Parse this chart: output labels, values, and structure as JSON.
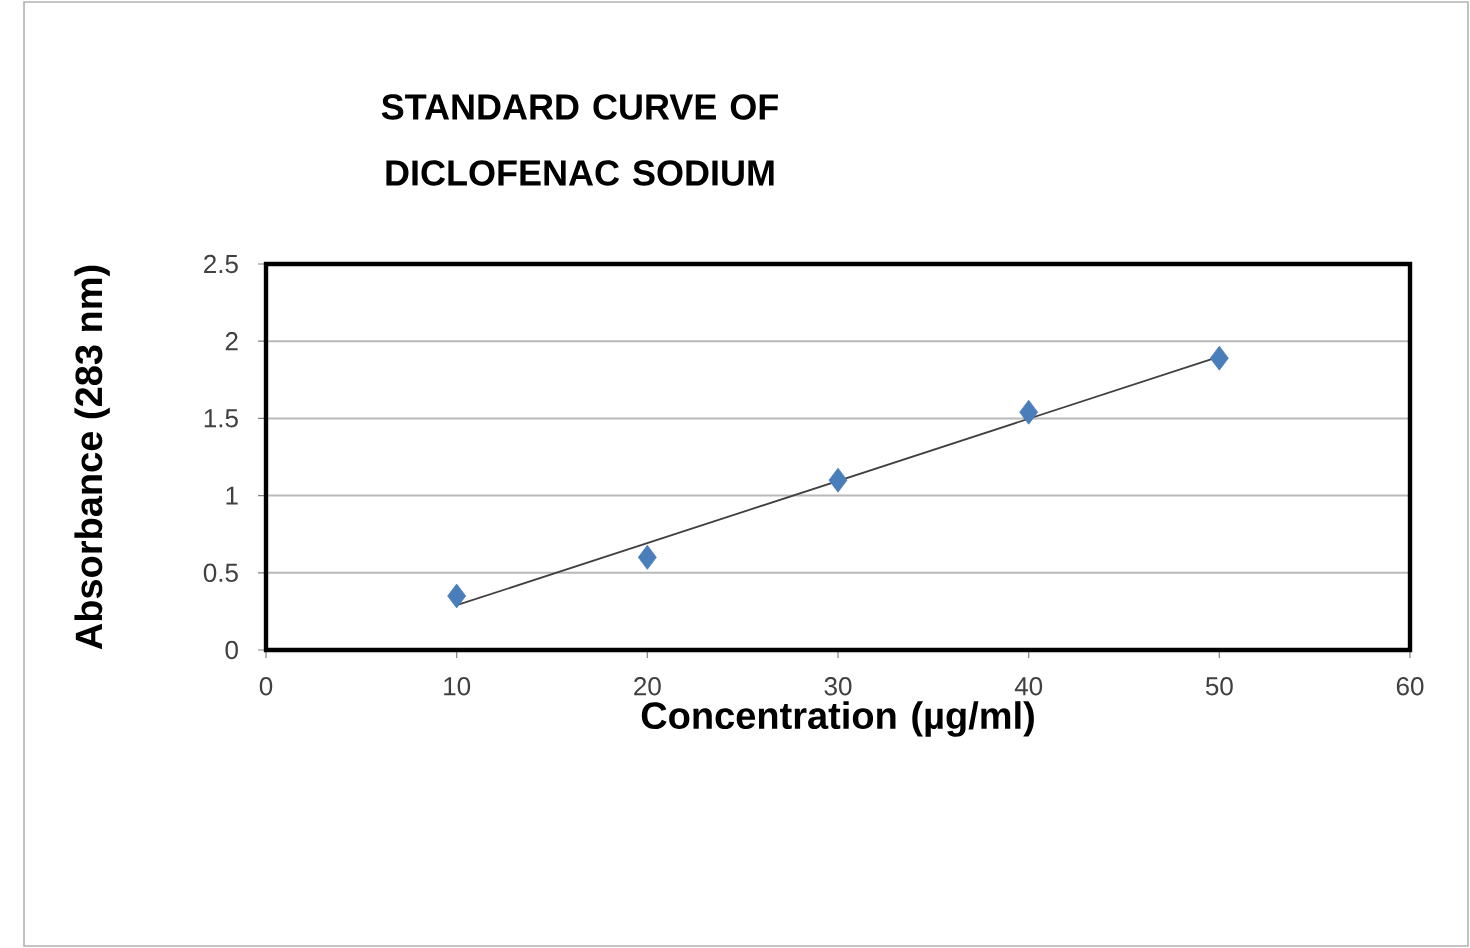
{
  "chart_data": {
    "type": "scatter",
    "title": "STANDARD CURVE OF DICLOFENAC SODIUM",
    "xlabel": "Concentration (µg/ml)",
    "ylabel": "Absorbance (283 nm)",
    "xlim": [
      0,
      60
    ],
    "xticks": [
      0,
      10,
      20,
      30,
      40,
      50,
      60
    ],
    "ylim": [
      0,
      2.5
    ],
    "yticks": [
      0,
      0.5,
      1,
      1.5,
      2,
      2.5
    ],
    "grid": "y",
    "series": [
      {
        "marker": "diamond",
        "color": "#4a7ebb",
        "x": [
          10,
          20,
          30,
          40,
          50
        ],
        "values": [
          0.35,
          0.6,
          1.1,
          1.54,
          1.89
        ]
      },
      {
        "type": "line",
        "marker": "none",
        "color": "#404040",
        "x": [
          10,
          50
        ],
        "values": [
          0.29,
          1.9
        ]
      }
    ]
  }
}
